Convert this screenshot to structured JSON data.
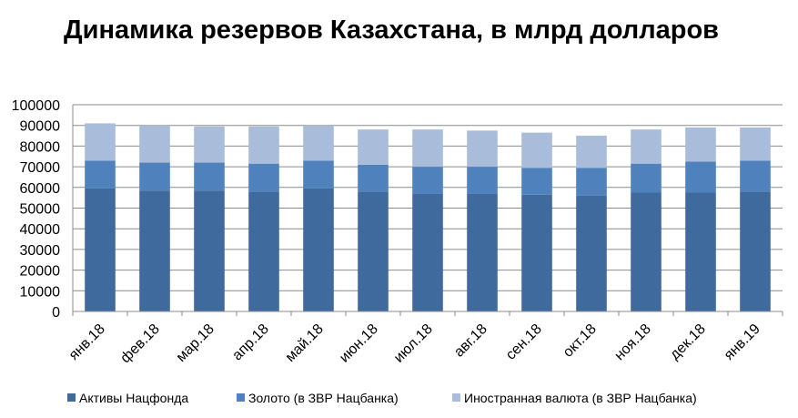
{
  "chart_data": {
    "type": "bar",
    "stacked": true,
    "title": "Динамика резервов Казахстана, в млрд долларов",
    "xlabel": "",
    "ylabel": "",
    "ylim": [
      0,
      100000
    ],
    "yticks": [
      0,
      10000,
      20000,
      30000,
      40000,
      50000,
      60000,
      70000,
      80000,
      90000,
      100000
    ],
    "grid": true,
    "legend_position": "bottom",
    "categories": [
      "янв.18",
      "фев.18",
      "мар.18",
      "апр.18",
      "май.18",
      "июн.18",
      "июл.18",
      "авг.18",
      "сен.18",
      "окт.18",
      "ноя.18",
      "дек.18",
      "янв.19"
    ],
    "series": [
      {
        "name": "Активы Нацфонда",
        "color": "#3F6A9E",
        "values": [
          59500,
          58500,
          58500,
          58000,
          59500,
          58000,
          57000,
          57000,
          56500,
          56000,
          57500,
          57500,
          58000
        ]
      },
      {
        "name": "Золото (в ЗВР Нацбанка)",
        "color": "#4F81BD",
        "values": [
          13500,
          13500,
          13500,
          13500,
          13500,
          13000,
          13000,
          13000,
          13000,
          13500,
          14000,
          15000,
          15000
        ]
      },
      {
        "name": "Иностранная валюта (в ЗВР Нацбанка)",
        "color": "#A9BCDA",
        "values": [
          18000,
          18000,
          17500,
          18000,
          17000,
          17000,
          18000,
          17500,
          17000,
          15500,
          16500,
          16500,
          16000
        ]
      }
    ]
  }
}
